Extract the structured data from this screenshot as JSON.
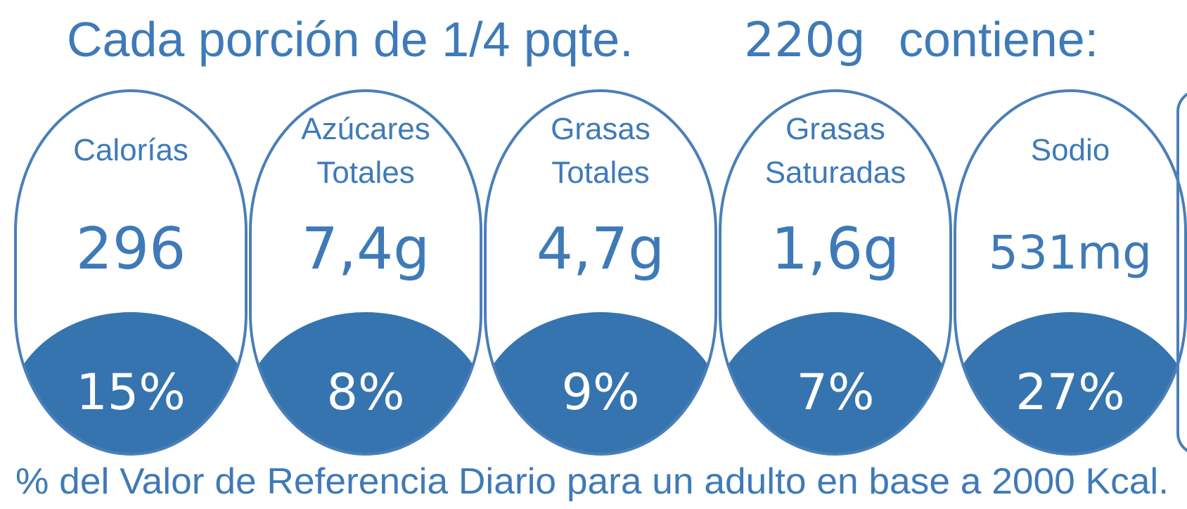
{
  "header": {
    "title_start": "Cada porción de 1/4 pqte.",
    "serving": "220g",
    "title_end": "contiene:"
  },
  "items": [
    {
      "label": [
        "Calorías"
      ],
      "amount": "296",
      "percent": "15%"
    },
    {
      "label": [
        "Azúcares",
        "Totales"
      ],
      "amount": "7,4g",
      "percent": "8%"
    },
    {
      "label": [
        "Grasas",
        "Totales"
      ],
      "amount": "4,7g",
      "percent": "9%"
    },
    {
      "label": [
        "Grasas",
        "Saturadas"
      ],
      "amount": "1,6g",
      "percent": "7%"
    },
    {
      "label": [
        "Sodio"
      ],
      "amount": "531mg",
      "percent": "27%"
    }
  ],
  "footer": "% del Valor de Referencia Diario para un adulto en base a 2000 Kcal."
}
